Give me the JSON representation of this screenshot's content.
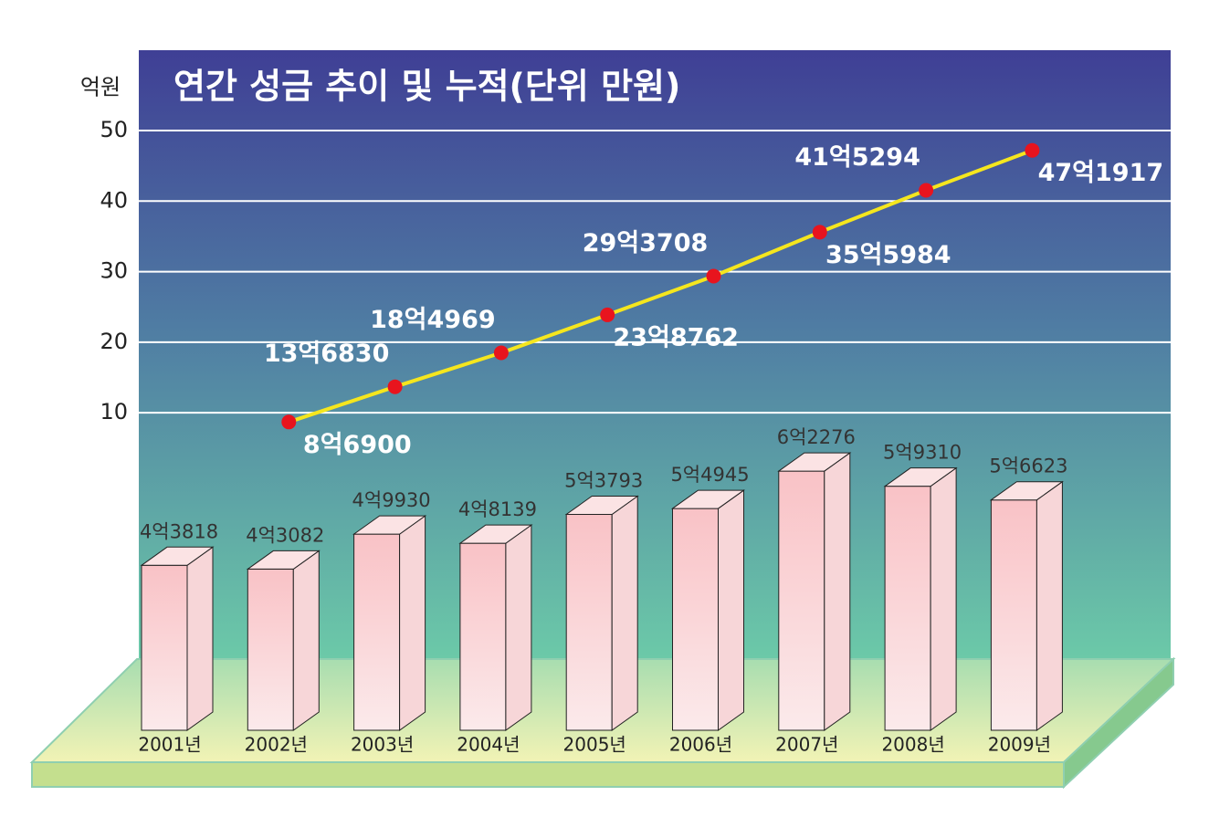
{
  "chart_data": {
    "type": "bar-line",
    "title": "연간 성금 추이 및 누적(단위 만원)",
    "y_axis_label": "억원",
    "categories": [
      "2001년",
      "2002년",
      "2003년",
      "2004년",
      "2005년",
      "2006년",
      "2007년",
      "2008년",
      "2009년"
    ],
    "series": [
      {
        "type": "bar",
        "axis": "y2",
        "color": "#f9c9cc",
        "values": [
          4.3818,
          4.3082,
          4.993,
          4.8139,
          5.3793,
          5.4945,
          6.2276,
          5.931,
          5.6623
        ],
        "value_labels": [
          "4억3818",
          "4억3082",
          "4억9930",
          "4억8139",
          "5억3793",
          "5억4945",
          "6억2276",
          "5억9310",
          "5억6623"
        ]
      },
      {
        "type": "line",
        "color": "#f5e61e",
        "marker_color": "#e8141e",
        "values": [
          null,
          8.69,
          13.683,
          18.4969,
          23.8762,
          29.3708,
          35.5984,
          41.5294,
          47.1917
        ],
        "value_labels": [
          null,
          "8억6900",
          "13억6830",
          "18억4969",
          "23억8762",
          "29억3708",
          "35억5984",
          "41억5294",
          "47억1917"
        ]
      }
    ],
    "ylim": [
      -35,
      50
    ],
    "yticks": [
      10,
      20,
      30,
      40,
      50
    ],
    "y2lim": [
      1.15,
      12.9
    ],
    "grid": true
  }
}
